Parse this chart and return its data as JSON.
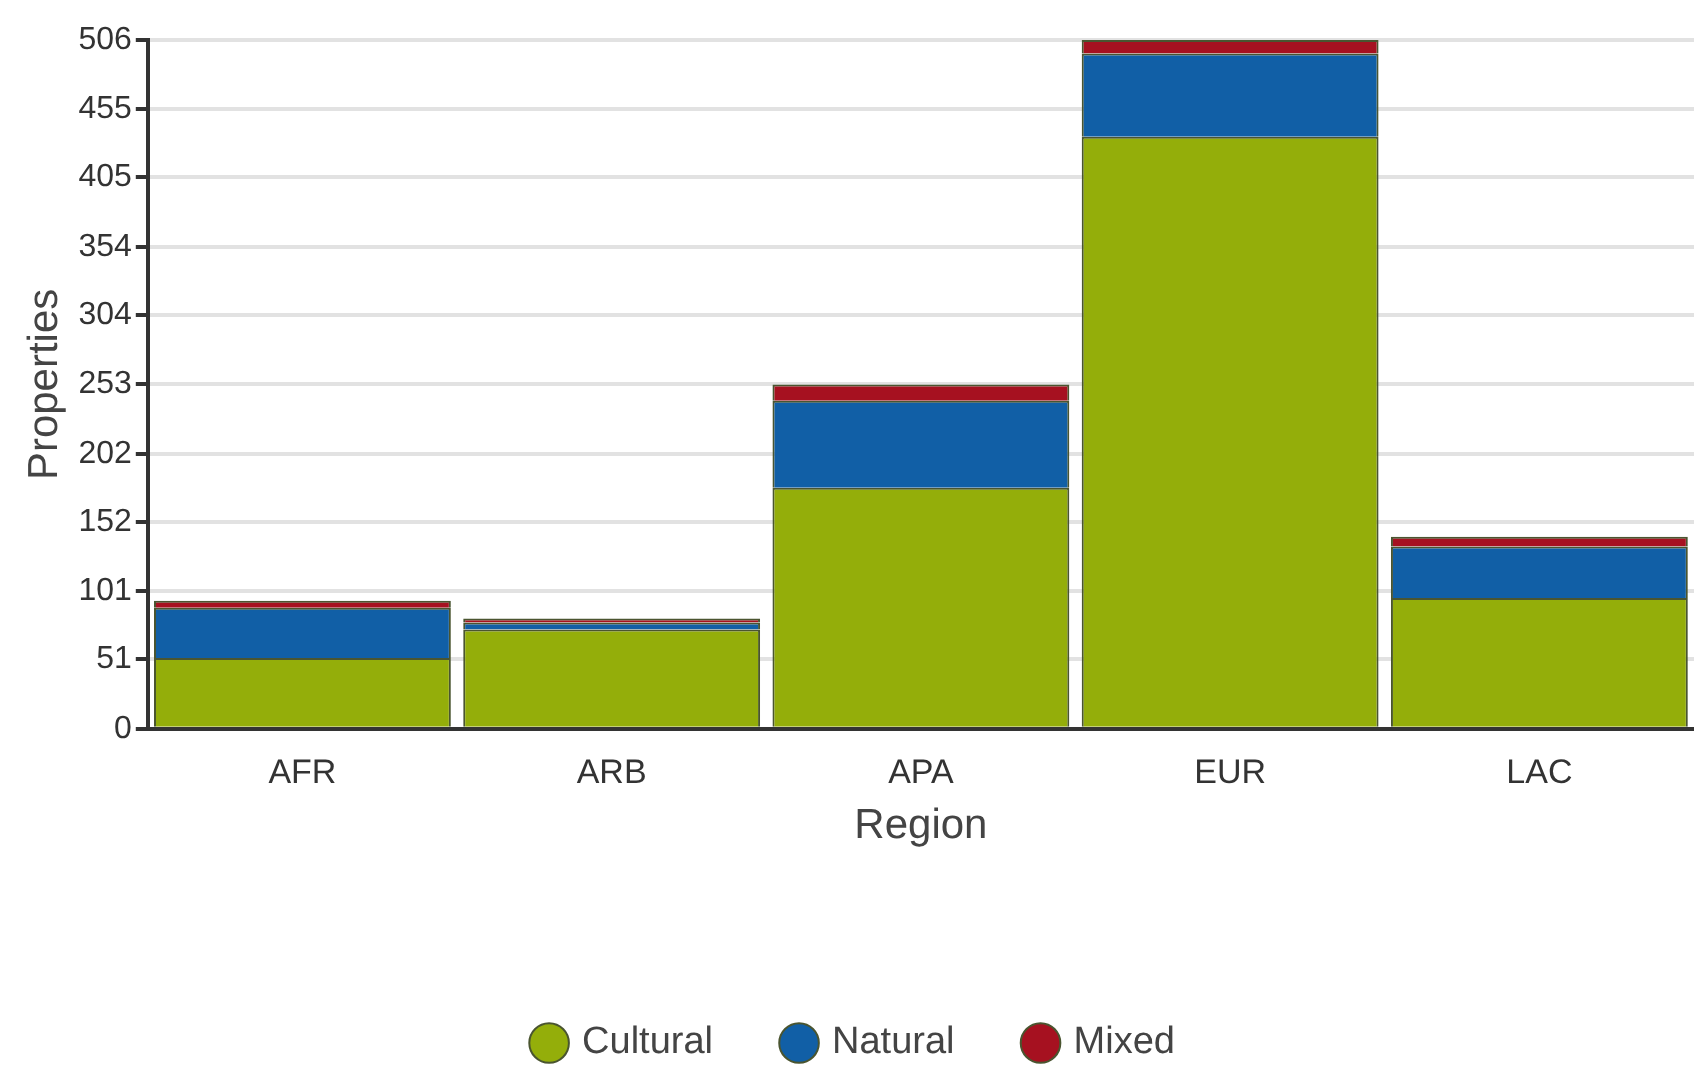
{
  "chart_data": {
    "type": "bar",
    "stacked": true,
    "xlabel": "Region",
    "ylabel": "Properties",
    "categories": [
      "AFR",
      "ARB",
      "APA",
      "EUR",
      "LAC"
    ],
    "series": [
      {
        "name": "Cultural",
        "color": "#94ae0a",
        "values": [
          52,
          73,
          177,
          435,
          96
        ]
      },
      {
        "name": "Natural",
        "color": "#115fa6",
        "values": [
          37,
          5,
          64,
          61,
          38
        ]
      },
      {
        "name": "Mixed",
        "color": "#a61120",
        "values": [
          5,
          3,
          12,
          10,
          7
        ]
      }
    ],
    "ylim": [
      0,
      506
    ],
    "yticks": [
      0,
      51,
      101,
      152,
      202,
      253,
      304,
      354,
      405,
      455,
      506
    ],
    "grid": "y",
    "legend": "bottom"
  }
}
